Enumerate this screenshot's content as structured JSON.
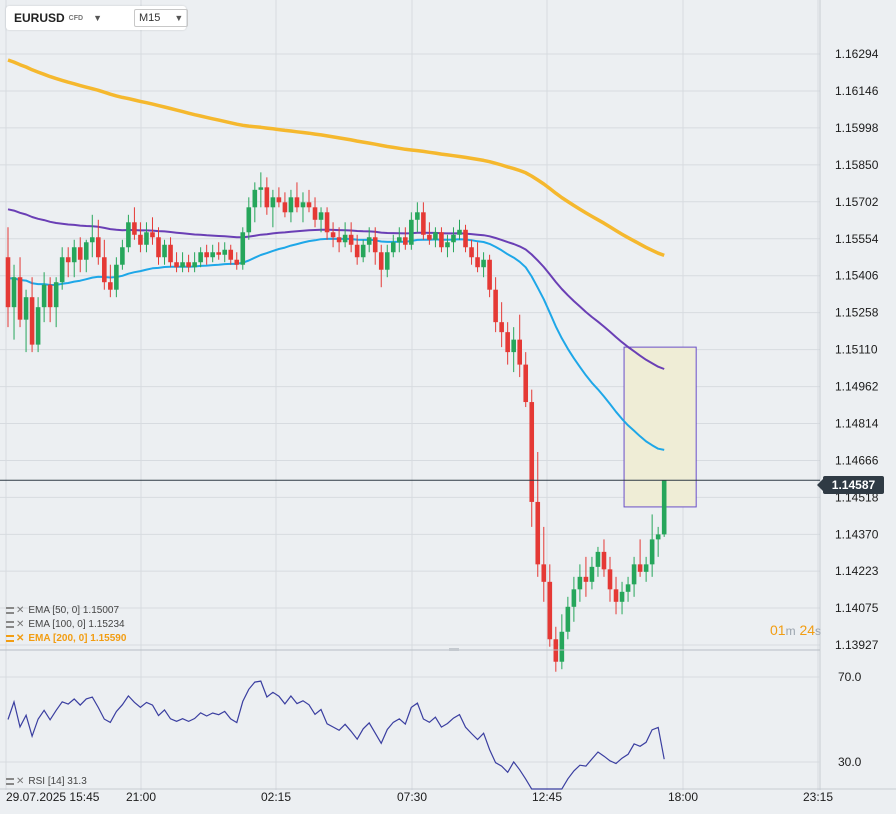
{
  "header": {
    "symbol": "EURUSD",
    "badge": "CFD",
    "timeframe": "M15"
  },
  "legend": {
    "ema50": "EMA [50, 0] 1.15007",
    "ema100": "EMA [100, 0] 1.15234",
    "ema200": "EMA [200, 0] 1.15590",
    "rsi": "RSI [14] 31.3"
  },
  "timer": {
    "min": "01",
    "min_unit": "m",
    "sec": "24",
    "sec_unit": "s"
  },
  "current_price": "1.14587",
  "colors": {
    "up": "#26a65b",
    "down": "#e53935",
    "ema50": "#1ea7e8",
    "ema100": "#6a3fb5",
    "ema200": "#f5b82e",
    "rsi": "#3a3ea0",
    "highlight_fill": "#efedd6",
    "highlight_border": "#6a4fc9"
  },
  "chart_data": [
    {
      "type": "candlestick",
      "y_ticks": [
        "1.16294",
        "1.16146",
        "1.15998",
        "1.15850",
        "1.15702",
        "1.15554",
        "1.15406",
        "1.15258",
        "1.15110",
        "1.14962",
        "1.14814",
        "1.14666",
        "1.14518",
        "1.14370",
        "1.14223",
        "1.14075",
        "1.13927"
      ],
      "x_ticks": [
        "29.07.2025  15:45",
        "21:00",
        "02:15",
        "07:30",
        "12:45",
        "18:00",
        "23:15"
      ],
      "ylim": [
        1.13927,
        1.16294
      ],
      "current_price": 1.14587,
      "candles": [
        [
          1.1548,
          1.156,
          1.152,
          1.1528
        ],
        [
          1.1528,
          1.1545,
          1.1515,
          1.154
        ],
        [
          1.154,
          1.1548,
          1.152,
          1.1523
        ],
        [
          1.1523,
          1.1535,
          1.151,
          1.1532
        ],
        [
          1.1532,
          1.154,
          1.151,
          1.1513
        ],
        [
          1.1513,
          1.1532,
          1.151,
          1.1528
        ],
        [
          1.1528,
          1.1542,
          1.1522,
          1.1537
        ],
        [
          1.1537,
          1.154,
          1.1522,
          1.1528
        ],
        [
          1.1528,
          1.154,
          1.152,
          1.1538
        ],
        [
          1.1538,
          1.1552,
          1.1535,
          1.1548
        ],
        [
          1.1548,
          1.1552,
          1.154,
          1.1546
        ],
        [
          1.1546,
          1.1555,
          1.154,
          1.1552
        ],
        [
          1.1552,
          1.1556,
          1.1542,
          1.1547
        ],
        [
          1.1547,
          1.1555,
          1.1542,
          1.1554
        ],
        [
          1.1554,
          1.1565,
          1.1548,
          1.1556
        ],
        [
          1.1556,
          1.1563,
          1.1545,
          1.1548
        ],
        [
          1.1548,
          1.1555,
          1.1535,
          1.1538
        ],
        [
          1.1538,
          1.1545,
          1.1532,
          1.1535
        ],
        [
          1.1535,
          1.1548,
          1.1532,
          1.1545
        ],
        [
          1.1545,
          1.1555,
          1.1543,
          1.1552
        ],
        [
          1.1552,
          1.1565,
          1.155,
          1.1562
        ],
        [
          1.1562,
          1.1568,
          1.1555,
          1.1557
        ],
        [
          1.1557,
          1.1562,
          1.155,
          1.1553
        ],
        [
          1.1553,
          1.1562,
          1.155,
          1.1558
        ],
        [
          1.1558,
          1.1564,
          1.1553,
          1.1556
        ],
        [
          1.1556,
          1.156,
          1.1545,
          1.1548
        ],
        [
          1.1548,
          1.1555,
          1.1545,
          1.1553
        ],
        [
          1.1553,
          1.1556,
          1.1544,
          1.1546
        ],
        [
          1.1546,
          1.155,
          1.1542,
          1.1544
        ],
        [
          1.1544,
          1.155,
          1.1542,
          1.1546
        ],
        [
          1.1546,
          1.1549,
          1.1542,
          1.1544
        ],
        [
          1.1544,
          1.155,
          1.1542,
          1.1546
        ],
        [
          1.1546,
          1.1552,
          1.1544,
          1.155
        ],
        [
          1.155,
          1.1553,
          1.1545,
          1.1548
        ],
        [
          1.1548,
          1.1553,
          1.1546,
          1.155
        ],
        [
          1.155,
          1.1554,
          1.1547,
          1.1549
        ],
        [
          1.1549,
          1.1554,
          1.1546,
          1.1551
        ],
        [
          1.1551,
          1.1553,
          1.1545,
          1.1547
        ],
        [
          1.1547,
          1.155,
          1.1543,
          1.1545
        ],
        [
          1.1545,
          1.156,
          1.1543,
          1.1558
        ],
        [
          1.1558,
          1.1572,
          1.1555,
          1.1568
        ],
        [
          1.1568,
          1.1578,
          1.1562,
          1.1575
        ],
        [
          1.1575,
          1.1582,
          1.1568,
          1.1576
        ],
        [
          1.1576,
          1.158,
          1.1565,
          1.1568
        ],
        [
          1.1568,
          1.1575,
          1.156,
          1.1572
        ],
        [
          1.1572,
          1.1576,
          1.1568,
          1.157
        ],
        [
          1.157,
          1.1574,
          1.1564,
          1.1566
        ],
        [
          1.1566,
          1.1575,
          1.1562,
          1.1572
        ],
        [
          1.1572,
          1.1578,
          1.1566,
          1.1568
        ],
        [
          1.1568,
          1.1574,
          1.1562,
          1.157
        ],
        [
          1.157,
          1.1575,
          1.1566,
          1.1568
        ],
        [
          1.1568,
          1.1572,
          1.156,
          1.1563
        ],
        [
          1.1563,
          1.1568,
          1.1558,
          1.1566
        ],
        [
          1.1566,
          1.1568,
          1.1555,
          1.1558
        ],
        [
          1.1558,
          1.1562,
          1.1552,
          1.1556
        ],
        [
          1.1556,
          1.156,
          1.155,
          1.1554
        ],
        [
          1.1554,
          1.1562,
          1.1552,
          1.1557
        ],
        [
          1.1557,
          1.1562,
          1.155,
          1.1553
        ],
        [
          1.1553,
          1.1557,
          1.1545,
          1.1548
        ],
        [
          1.1548,
          1.1555,
          1.1546,
          1.1553
        ],
        [
          1.1553,
          1.156,
          1.155,
          1.1556
        ],
        [
          1.1556,
          1.156,
          1.1545,
          1.155
        ],
        [
          1.155,
          1.1553,
          1.1536,
          1.1543
        ],
        [
          1.1543,
          1.1553,
          1.154,
          1.155
        ],
        [
          1.155,
          1.1557,
          1.1548,
          1.1554
        ],
        [
          1.1554,
          1.156,
          1.155,
          1.1556
        ],
        [
          1.1556,
          1.156,
          1.1551,
          1.1553
        ],
        [
          1.1553,
          1.1566,
          1.1551,
          1.1563
        ],
        [
          1.1563,
          1.157,
          1.1558,
          1.1566
        ],
        [
          1.1566,
          1.157,
          1.1555,
          1.1557
        ],
        [
          1.1557,
          1.1562,
          1.1553,
          1.1555
        ],
        [
          1.1555,
          1.156,
          1.1552,
          1.1558
        ],
        [
          1.1558,
          1.156,
          1.155,
          1.1552
        ],
        [
          1.1552,
          1.1557,
          1.1548,
          1.1554
        ],
        [
          1.1554,
          1.156,
          1.155,
          1.1557
        ],
        [
          1.1557,
          1.1563,
          1.1555,
          1.1559
        ],
        [
          1.1559,
          1.1561,
          1.155,
          1.1552
        ],
        [
          1.1552,
          1.1555,
          1.1545,
          1.1548
        ],
        [
          1.1548,
          1.1554,
          1.1542,
          1.1544
        ],
        [
          1.1544,
          1.155,
          1.154,
          1.1547
        ],
        [
          1.1547,
          1.1549,
          1.1532,
          1.1535
        ],
        [
          1.1535,
          1.154,
          1.1518,
          1.1522
        ],
        [
          1.1522,
          1.153,
          1.1512,
          1.1518
        ],
        [
          1.1518,
          1.1522,
          1.1505,
          1.151
        ],
        [
          1.151,
          1.152,
          1.1502,
          1.1515
        ],
        [
          1.1515,
          1.1525,
          1.15,
          1.1505
        ],
        [
          1.1505,
          1.151,
          1.1488,
          1.149
        ],
        [
          1.149,
          1.1495,
          1.144,
          1.145
        ],
        [
          1.145,
          1.147,
          1.142,
          1.1425
        ],
        [
          1.1425,
          1.144,
          1.141,
          1.1418
        ],
        [
          1.1418,
          1.1425,
          1.1392,
          1.1395
        ],
        [
          1.1395,
          1.14,
          1.1382,
          1.1386
        ],
        [
          1.1386,
          1.1405,
          1.1383,
          1.1398
        ],
        [
          1.1398,
          1.1412,
          1.1395,
          1.1408
        ],
        [
          1.1408,
          1.142,
          1.1402,
          1.1415
        ],
        [
          1.1415,
          1.1425,
          1.141,
          1.142
        ],
        [
          1.142,
          1.1428,
          1.1412,
          1.1418
        ],
        [
          1.1418,
          1.1428,
          1.1415,
          1.1424
        ],
        [
          1.1424,
          1.1432,
          1.142,
          1.143
        ],
        [
          1.143,
          1.1435,
          1.142,
          1.1423
        ],
        [
          1.1423,
          1.1428,
          1.141,
          1.1415
        ],
        [
          1.1415,
          1.142,
          1.1405,
          1.141
        ],
        [
          1.141,
          1.1418,
          1.1405,
          1.1414
        ],
        [
          1.1414,
          1.142,
          1.141,
          1.1417
        ],
        [
          1.1417,
          1.1428,
          1.1412,
          1.1425
        ],
        [
          1.1425,
          1.1435,
          1.142,
          1.1422
        ],
        [
          1.1422,
          1.1428,
          1.1418,
          1.1425
        ],
        [
          1.1425,
          1.1445,
          1.142,
          1.1435
        ],
        [
          1.1435,
          1.144,
          1.1428,
          1.1437
        ],
        [
          1.1437,
          1.14587,
          1.1436,
          1.14587
        ]
      ]
    },
    {
      "type": "line",
      "name": "RSI [14]",
      "y_ticks": [
        "70.0",
        "30.0"
      ],
      "ylim": [
        30,
        70
      ],
      "last_value": 31.3
    }
  ]
}
